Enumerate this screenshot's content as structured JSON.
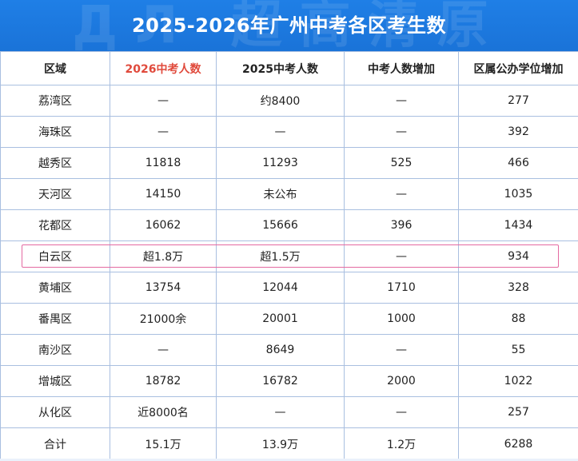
{
  "title": "2025-2026年广州中考各区考生数",
  "watermark": "ДЛ 超高清原",
  "table": {
    "headers": [
      "区域",
      "2026中考人数",
      "2025中考人数",
      "中考人数增加",
      "区属公办学位增加"
    ],
    "rows": [
      [
        "荔湾区",
        "—",
        "约8400",
        "—",
        "277"
      ],
      [
        "海珠区",
        "—",
        "—",
        "—",
        "392"
      ],
      [
        "越秀区",
        "11818",
        "11293",
        "525",
        "466"
      ],
      [
        "天河区",
        "14150",
        "未公布",
        "—",
        "1035"
      ],
      [
        "花都区",
        "16062",
        "15666",
        "396",
        "1434"
      ],
      [
        "白云区",
        "超1.8万",
        "超1.5万",
        "—",
        "934"
      ],
      [
        "黄埔区",
        "13754",
        "12044",
        "1710",
        "328"
      ],
      [
        "番禺区",
        "21000余",
        "20001",
        "1000",
        "88"
      ],
      [
        "南沙区",
        "—",
        "8649",
        "—",
        "55"
      ],
      [
        "增城区",
        "18782",
        "16782",
        "2000",
        "1022"
      ],
      [
        "从化区",
        "近8000名",
        "—",
        "—",
        "257"
      ]
    ],
    "total": [
      "合计",
      "15.1万",
      "13.9万",
      "1.2万",
      "6288"
    ],
    "highlighted_row": "白云区"
  },
  "colors": {
    "banner": "#1a73d8",
    "header_2026": "#e04a3c",
    "grid": "#a9bfe0",
    "highlight_border": "#e46aa1"
  }
}
